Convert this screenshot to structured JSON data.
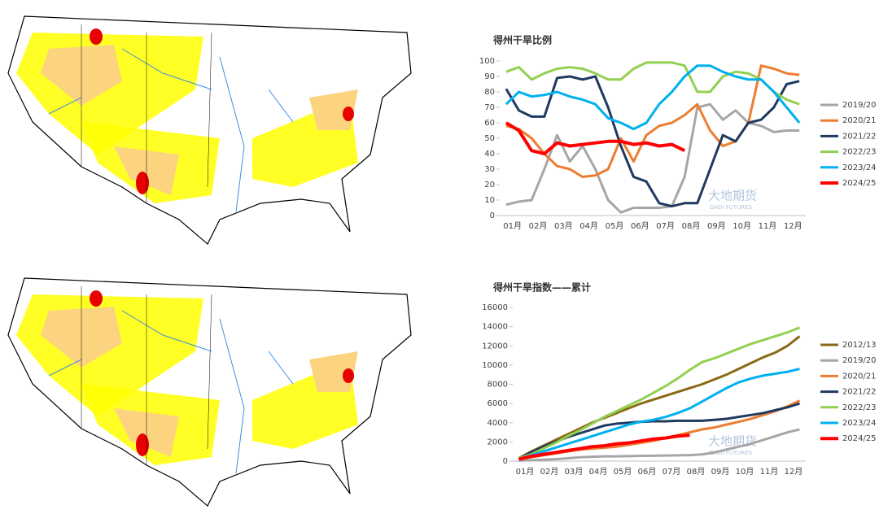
{
  "chart_data": [
    {
      "type": "line",
      "title": "得州干旱比例",
      "watermark": "大地期货",
      "watermark_sub": "DADI FUTURES",
      "categories": [
        "01月",
        null,
        "02月",
        null,
        "03月",
        null,
        "04月",
        null,
        "05月",
        null,
        "06月",
        null,
        "07月",
        null,
        "08月",
        null,
        "09月",
        null,
        "10月",
        null,
        "11月",
        null,
        "12月",
        null
      ],
      "ylim": [
        0,
        100
      ],
      "yticks": [
        0,
        10,
        20,
        30,
        40,
        50,
        60,
        70,
        80,
        90,
        100
      ],
      "legend": "right",
      "series": [
        {
          "name": "2019/20",
          "color": "#a6a6a6",
          "width": 3,
          "values": [
            7,
            9,
            10,
            30,
            52,
            35,
            45,
            30,
            10,
            2,
            5,
            5,
            5,
            6,
            25,
            70,
            72,
            62,
            68,
            60,
            58,
            54,
            55,
            55
          ]
        },
        {
          "name": "2020/21",
          "color": "#ed7d31",
          "width": 3,
          "values": [
            58,
            56,
            50,
            40,
            32,
            30,
            25,
            26,
            30,
            50,
            35,
            52,
            58,
            60,
            65,
            72,
            55,
            45,
            48,
            60,
            97,
            95,
            92,
            91
          ]
        },
        {
          "name": "2021/22",
          "color": "#1f3a5f",
          "width": 3,
          "values": [
            82,
            68,
            64,
            64,
            89,
            90,
            88,
            90,
            70,
            45,
            25,
            22,
            8,
            6,
            8,
            8,
            30,
            52,
            48,
            60,
            62,
            70,
            85,
            87
          ]
        },
        {
          "name": "2022/23",
          "color": "#92d050",
          "width": 3,
          "values": [
            93,
            96,
            88,
            92,
            95,
            96,
            95,
            92,
            88,
            88,
            95,
            99,
            99,
            99,
            97,
            80,
            80,
            90,
            93,
            92,
            88,
            80,
            75,
            72
          ]
        },
        {
          "name": "2023/24",
          "color": "#00b0f0",
          "width": 3,
          "values": [
            72,
            80,
            77,
            78,
            80,
            77,
            75,
            72,
            63,
            60,
            56,
            60,
            72,
            80,
            90,
            97,
            97,
            93,
            90,
            88,
            88,
            80,
            70,
            60
          ]
        },
        {
          "name": "2024/25",
          "color": "#ff0000",
          "width": 4,
          "values": [
            60,
            55,
            42,
            40,
            47,
            45,
            46,
            47,
            48,
            48,
            46,
            47,
            45,
            46,
            42,
            null,
            null,
            null,
            null,
            null,
            null,
            null,
            null,
            null
          ]
        }
      ]
    },
    {
      "type": "line",
      "title": "得州干旱指数——累计",
      "watermark": "大地期货",
      "watermark_sub": "DADI FUTURES",
      "categories": [
        "01月",
        null,
        "02月",
        null,
        "03月",
        null,
        "04月",
        null,
        "05月",
        null,
        "06月",
        null,
        "07月",
        null,
        "08月",
        null,
        "09月",
        null,
        "10月",
        null,
        "11月",
        null,
        "12月",
        null
      ],
      "ylim": [
        0,
        16000
      ],
      "yticks": [
        0,
        2000,
        4000,
        6000,
        8000,
        10000,
        12000,
        14000,
        16000
      ],
      "legend": "right",
      "series": [
        {
          "name": "2012/13",
          "color": "#8b6914",
          "width": 3,
          "values": [
            300,
            1000,
            1600,
            2200,
            2800,
            3400,
            4000,
            4500,
            5000,
            5500,
            6000,
            6400,
            6800,
            7200,
            7600,
            8000,
            8500,
            9000,
            9600,
            10200,
            10800,
            11300,
            12000,
            13000
          ]
        },
        {
          "name": "2019/20",
          "color": "#a6a6a6",
          "width": 3,
          "values": [
            50,
            100,
            150,
            200,
            300,
            400,
            450,
            500,
            500,
            520,
            550,
            560,
            580,
            600,
            620,
            700,
            900,
            1200,
            1500,
            1800,
            2200,
            2600,
            3000,
            3300
          ]
        },
        {
          "name": "2020/21",
          "color": "#ed7d31",
          "width": 3,
          "values": [
            200,
            400,
            600,
            800,
            1000,
            1200,
            1300,
            1400,
            1500,
            1700,
            1900,
            2100,
            2400,
            2700,
            3000,
            3300,
            3500,
            3800,
            4100,
            4400,
            4800,
            5200,
            5700,
            6300
          ]
        },
        {
          "name": "2021/22",
          "color": "#1f3a5f",
          "width": 3,
          "values": [
            300,
            900,
            1500,
            2000,
            2500,
            2900,
            3300,
            3700,
            3900,
            4000,
            4100,
            4150,
            4150,
            4200,
            4200,
            4200,
            4300,
            4400,
            4600,
            4800,
            5000,
            5300,
            5600,
            6000
          ]
        },
        {
          "name": "2022/23",
          "color": "#92d050",
          "width": 3,
          "values": [
            300,
            700,
            1300,
            1900,
            2600,
            3200,
            3900,
            4600,
            5200,
            5800,
            6400,
            7100,
            7800,
            8600,
            9500,
            10300,
            10700,
            11200,
            11700,
            12200,
            12600,
            13000,
            13400,
            13900
          ]
        },
        {
          "name": "2023/24",
          "color": "#00b0f0",
          "width": 3,
          "values": [
            200,
            600,
            1000,
            1400,
            1800,
            2200,
            2600,
            3000,
            3400,
            3800,
            4100,
            4300,
            4600,
            5000,
            5500,
            6200,
            6900,
            7600,
            8200,
            8600,
            8900,
            9100,
            9300,
            9600
          ]
        },
        {
          "name": "2024/25",
          "color": "#ff0000",
          "width": 4,
          "values": [
            200,
            500,
            700,
            900,
            1100,
            1300,
            1500,
            1600,
            1800,
            1900,
            2100,
            2300,
            2400,
            2600,
            2700,
            null,
            null,
            null,
            null,
            null,
            null,
            null,
            null,
            null
          ]
        }
      ]
    }
  ]
}
